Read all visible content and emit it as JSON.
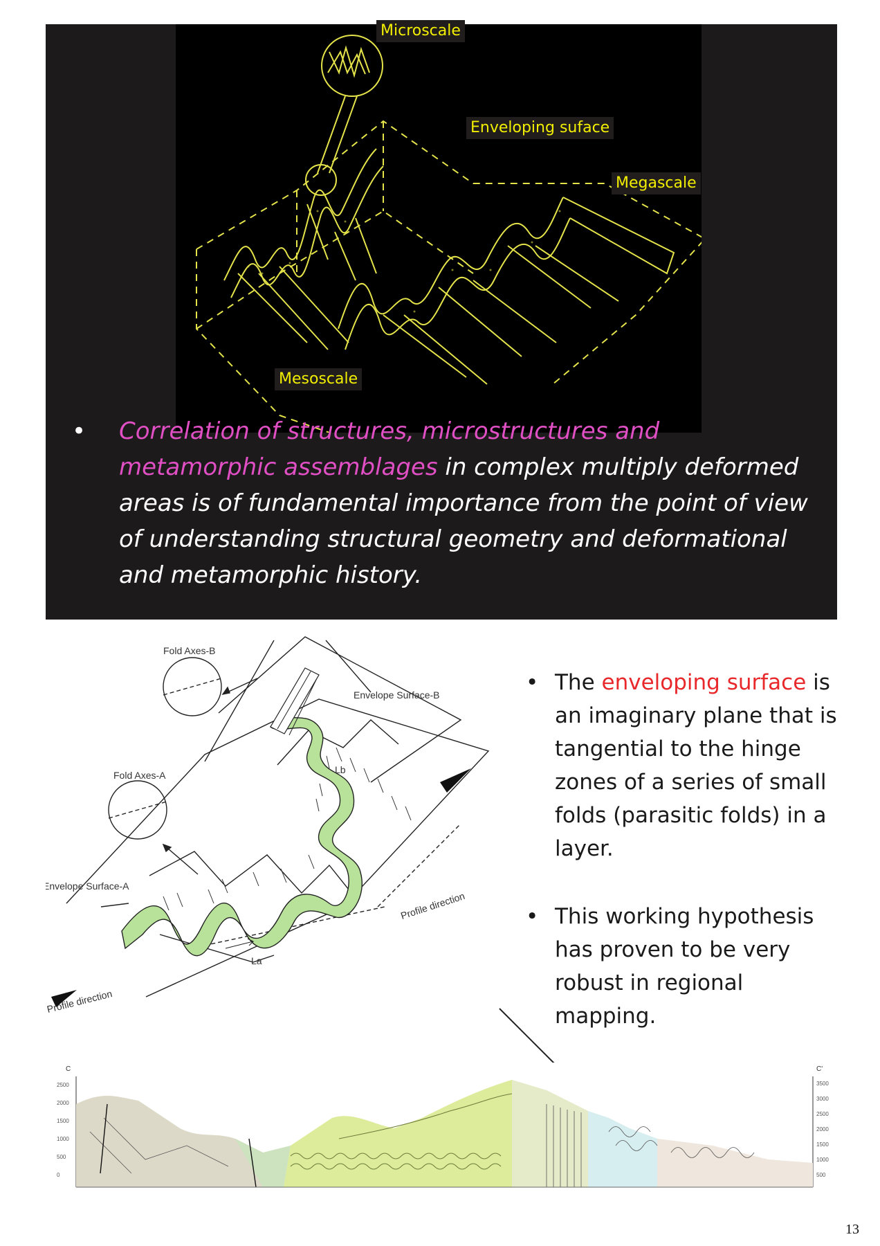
{
  "top_figure": {
    "labels": {
      "microscale": "Microscale",
      "enveloping": "Enveloping suface",
      "megascale": "Megascale",
      "mesoscale": "Mesoscale"
    }
  },
  "top_bullet": {
    "bullet": "•",
    "highlight": "Correlation of structures, microstructures and metamorphic assemblages",
    "rest": " in complex multiply deformed areas is of fundamental importance from the point of view of understanding structural geometry and deformational and metamorphic history."
  },
  "mid_figure": {
    "labels": {
      "fold_axes_b": "Fold Axes-B",
      "envelope_b": "Envelope Surface-B",
      "fold_axes_a": "Fold Axes-A",
      "envelope_a": "Envelope Surface-A",
      "lb": "Lb",
      "la": "La",
      "profile_right": "Profile direction",
      "profile_left": "Profile direction"
    }
  },
  "right_text": {
    "bullet1_pre": "The ",
    "bullet1_highlight": "enveloping surface",
    "bullet1_post": " is an imaginary plane that is tangential to the hinge zones of a series of small folds (parasitic folds) in a layer.",
    "bullet2": "This working hypothesis has proven to be very robust in regional mapping."
  },
  "cross_section": {
    "left_end": "C",
    "right_end": "C'",
    "axis_left": [
      "2500",
      "2000",
      "1500",
      "1000",
      "500",
      "0"
    ],
    "axis_right": [
      "3500",
      "3000",
      "2500",
      "2000",
      "1500",
      "1000",
      "500"
    ]
  },
  "page": {
    "number": "13"
  },
  "colors": {
    "magenta": "#e04fc4",
    "red": "#e8282b",
    "figure_yellow": "#e4e34a",
    "fold_green": "#b8e29a"
  }
}
